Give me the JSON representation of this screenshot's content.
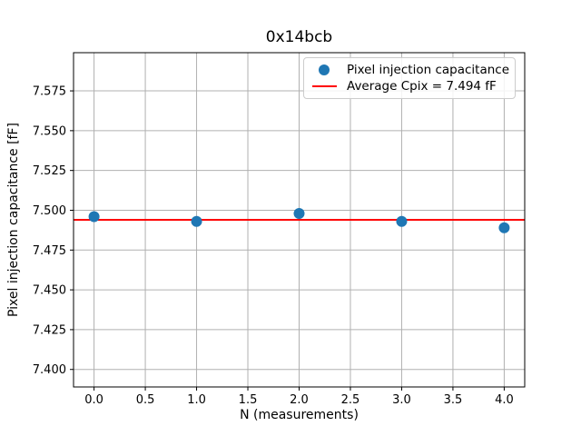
{
  "figure": {
    "background": "#ffffff"
  },
  "chart_data": {
    "type": "scatter",
    "title": "0x14bcb",
    "xlabel": "N (measurements)",
    "ylabel": "Pixel injection capacitance [fF]",
    "x": [
      0,
      1,
      2,
      3,
      4
    ],
    "y": [
      7.496,
      7.493,
      7.498,
      7.493,
      7.489
    ],
    "series": [
      {
        "name": "Pixel injection capacitance",
        "marker": "circle",
        "color": "#1f77b4"
      }
    ],
    "average_line": {
      "value": 7.494,
      "label": "Average Cpix = 7.494 fF",
      "color": "#ff0000"
    },
    "xlim": [
      -0.2,
      4.2
    ],
    "ylim": [
      7.389,
      7.599
    ],
    "xticks": [
      0.0,
      0.5,
      1.0,
      1.5,
      2.0,
      2.5,
      3.0,
      3.5,
      4.0
    ],
    "xtick_labels": [
      "0.0",
      "0.5",
      "1.0",
      "1.5",
      "2.0",
      "2.5",
      "3.0",
      "3.5",
      "4.0"
    ],
    "yticks": [
      7.4,
      7.425,
      7.45,
      7.475,
      7.5,
      7.525,
      7.55,
      7.575
    ],
    "ytick_labels": [
      "7.400",
      "7.425",
      "7.450",
      "7.475",
      "7.500",
      "7.525",
      "7.550",
      "7.575"
    ],
    "grid": true,
    "grid_color": "#b0b0b0",
    "frame_color": "#000000",
    "marker_color": "#1f77b4",
    "marker_diameter_px": 12,
    "legend_position": "upper right"
  },
  "legend": {
    "items": [
      {
        "label": "Pixel injection capacitance",
        "swatch": "circle",
        "color": "#1f77b4"
      },
      {
        "label": "Average Cpix = 7.494 fF",
        "swatch": "line",
        "color": "#ff0000"
      }
    ]
  }
}
